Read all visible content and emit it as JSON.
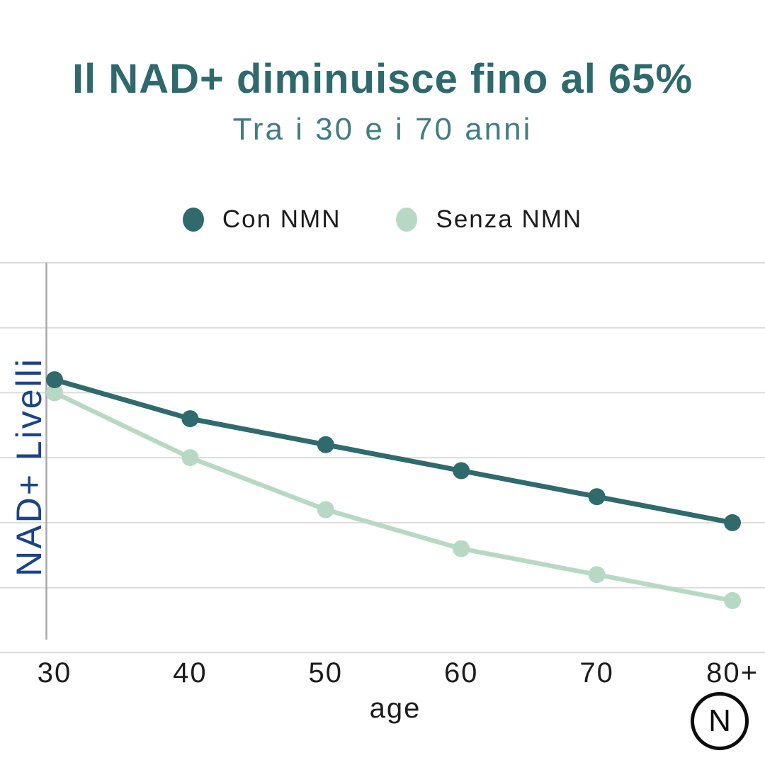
{
  "header": {
    "title": "Il NAD+ diminuisce fino al 65%",
    "subtitle": "Tra i 30 e i 70 anni"
  },
  "chart_data": {
    "type": "line",
    "categories": [
      "30",
      "40",
      "50",
      "60",
      "70",
      "80+"
    ],
    "series": [
      {
        "name": "Con NMN",
        "color": "#2f6a6c",
        "values": [
          82,
          76,
          72,
          68,
          64,
          60
        ]
      },
      {
        "name": "Senza NMN",
        "color": "#b7d9c4",
        "values": [
          80,
          70,
          62,
          56,
          52,
          48
        ]
      }
    ],
    "title": "Il NAD+ diminuisce fino al 65%",
    "subtitle": "Tra i 30 e i 70 anni",
    "xlabel": "age",
    "ylabel": "NAD+ Livelli",
    "ylim": [
      40,
      100
    ],
    "grid": "horizontal",
    "gridline_values": [
      100,
      90,
      80,
      70,
      60,
      50,
      40
    ],
    "legend_position": "top"
  },
  "colors": {
    "title": "#2e696c",
    "subtitle": "#417d80",
    "ylabel": "#1b4387",
    "gridline": "#dcdcdc",
    "axis_line": "#a9a9a9",
    "tick_text": "#1c1c1c"
  },
  "logo": {
    "letter": "N"
  }
}
